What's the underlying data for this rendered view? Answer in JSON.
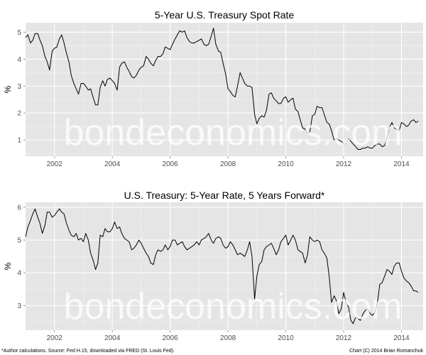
{
  "chart_data": [
    {
      "type": "line",
      "title": "5-Year U.S. Treasury Spot Rate",
      "ylabel": "%",
      "xlim": [
        2001.0,
        2014.75
      ],
      "ylim": [
        0.4,
        5.35
      ],
      "xticks": [
        2002,
        2004,
        2006,
        2008,
        2010,
        2012,
        2014
      ],
      "yticks": [
        1,
        2,
        3,
        4,
        5
      ],
      "grid": true,
      "watermark": "bondeconomics.com",
      "line_color": "#000000",
      "panel_color": "#e5e5e5",
      "series": [
        {
          "x": [
            2001.0,
            2001.08,
            2001.17,
            2001.25,
            2001.33,
            2001.42,
            2001.5,
            2001.58,
            2001.67,
            2001.75,
            2001.83,
            2001.92,
            2002.0,
            2002.08,
            2002.17,
            2002.25,
            2002.33,
            2002.42,
            2002.5,
            2002.58,
            2002.67,
            2002.75,
            2002.83,
            2002.92,
            2003.0,
            2003.08,
            2003.17,
            2003.25,
            2003.33,
            2003.42,
            2003.5,
            2003.58,
            2003.67,
            2003.75,
            2003.83,
            2003.92,
            2004.0,
            2004.08,
            2004.17,
            2004.25,
            2004.33,
            2004.42,
            2004.5,
            2004.58,
            2004.67,
            2004.75,
            2004.83,
            2004.92,
            2005.0,
            2005.08,
            2005.17,
            2005.25,
            2005.33,
            2005.42,
            2005.5,
            2005.58,
            2005.67,
            2005.75,
            2005.83,
            2005.92,
            2006.0,
            2006.08,
            2006.17,
            2006.25,
            2006.33,
            2006.42,
            2006.5,
            2006.58,
            2006.67,
            2006.75,
            2006.83,
            2006.92,
            2007.0,
            2007.08,
            2007.17,
            2007.25,
            2007.33,
            2007.42,
            2007.5,
            2007.58,
            2007.67,
            2007.75,
            2007.83,
            2007.92,
            2008.0,
            2008.08,
            2008.17,
            2008.25,
            2008.33,
            2008.42,
            2008.5,
            2008.58,
            2008.67,
            2008.75,
            2008.83,
            2008.92,
            2009.0,
            2009.08,
            2009.17,
            2009.25,
            2009.33,
            2009.42,
            2009.5,
            2009.58,
            2009.67,
            2009.75,
            2009.83,
            2009.92,
            2010.0,
            2010.08,
            2010.17,
            2010.25,
            2010.33,
            2010.42,
            2010.5,
            2010.58,
            2010.67,
            2010.75,
            2010.83,
            2010.92,
            2011.0,
            2011.08,
            2011.17,
            2011.25,
            2011.33,
            2011.42,
            2011.5,
            2011.58,
            2011.67,
            2011.75,
            2011.83,
            2011.92,
            2012.0,
            2012.08,
            2012.17,
            2012.25,
            2012.33,
            2012.42,
            2012.5,
            2012.58,
            2012.67,
            2012.75,
            2012.83,
            2012.92,
            2013.0,
            2013.08,
            2013.17,
            2013.25,
            2013.33,
            2013.42,
            2013.5,
            2013.58,
            2013.67,
            2013.75,
            2013.83,
            2013.92,
            2014.0,
            2014.08,
            2014.17,
            2014.25,
            2014.33,
            2014.42,
            2014.5,
            2014.58
          ],
          "y": [
            4.8,
            4.9,
            4.6,
            4.7,
            4.95,
            4.95,
            4.7,
            4.5,
            4.1,
            3.9,
            3.6,
            4.3,
            4.4,
            4.45,
            4.75,
            4.9,
            4.6,
            4.2,
            3.9,
            3.4,
            3.1,
            2.9,
            2.7,
            3.1,
            3.1,
            3.0,
            2.85,
            2.9,
            2.6,
            2.3,
            2.3,
            2.95,
            3.2,
            3.0,
            3.25,
            3.3,
            3.2,
            3.1,
            2.85,
            3.7,
            3.85,
            3.9,
            3.7,
            3.55,
            3.35,
            3.3,
            3.4,
            3.6,
            3.7,
            3.75,
            4.1,
            4.0,
            3.85,
            3.75,
            3.95,
            4.1,
            4.1,
            4.2,
            4.45,
            4.4,
            4.35,
            4.55,
            4.75,
            4.9,
            5.05,
            5.0,
            5.05,
            4.8,
            4.65,
            4.6,
            4.6,
            4.65,
            4.7,
            4.75,
            4.55,
            4.5,
            4.55,
            4.85,
            5.15,
            4.55,
            4.3,
            4.25,
            3.85,
            3.45,
            2.9,
            2.8,
            2.65,
            2.6,
            3.0,
            3.5,
            3.3,
            3.1,
            3.0,
            3.0,
            2.95,
            1.95,
            1.6,
            1.8,
            1.9,
            1.85,
            2.1,
            2.7,
            2.75,
            2.55,
            2.45,
            2.35,
            2.35,
            2.55,
            2.6,
            2.4,
            2.5,
            2.55,
            2.15,
            2.05,
            1.75,
            1.45,
            1.4,
            1.25,
            1.3,
            1.9,
            1.95,
            2.25,
            2.2,
            2.2,
            1.95,
            1.65,
            1.6,
            1.35,
            1.0,
            1.05,
            1.0,
            0.95,
            0.85,
            0.85,
            1.05,
            0.95,
            0.85,
            0.75,
            0.65,
            0.65,
            0.7,
            0.7,
            0.75,
            0.7,
            0.7,
            0.8,
            0.85,
            0.85,
            0.75,
            0.8,
            1.1,
            1.45,
            1.65,
            1.45,
            1.4,
            1.35,
            1.65,
            1.6,
            1.5,
            1.55,
            1.7,
            1.75,
            1.65,
            1.7
          ]
        }
      ]
    },
    {
      "type": "line",
      "title": "U.S. Treasury: 5-Year Rate, 5 Years Forward*",
      "ylabel": "%",
      "xlim": [
        2001.0,
        2014.75
      ],
      "ylim": [
        2.25,
        6.15
      ],
      "xticks": [
        2002,
        2004,
        2006,
        2008,
        2010,
        2012,
        2014
      ],
      "yticks": [
        3,
        4,
        5,
        6
      ],
      "grid": true,
      "watermark": "bondeconomics.com",
      "line_color": "#000000",
      "panel_color": "#e5e5e5",
      "series": [
        {
          "x": [
            2001.0,
            2001.08,
            2001.17,
            2001.25,
            2001.33,
            2001.42,
            2001.5,
            2001.58,
            2001.67,
            2001.75,
            2001.83,
            2001.92,
            2002.0,
            2002.08,
            2002.17,
            2002.25,
            2002.33,
            2002.42,
            2002.5,
            2002.58,
            2002.67,
            2002.75,
            2002.83,
            2002.92,
            2003.0,
            2003.08,
            2003.17,
            2003.25,
            2003.33,
            2003.42,
            2003.5,
            2003.58,
            2003.67,
            2003.75,
            2003.83,
            2003.92,
            2004.0,
            2004.08,
            2004.17,
            2004.25,
            2004.33,
            2004.42,
            2004.5,
            2004.58,
            2004.67,
            2004.75,
            2004.83,
            2004.92,
            2005.0,
            2005.08,
            2005.17,
            2005.25,
            2005.33,
            2005.42,
            2005.5,
            2005.58,
            2005.67,
            2005.75,
            2005.83,
            2005.92,
            2006.0,
            2006.08,
            2006.17,
            2006.25,
            2006.33,
            2006.42,
            2006.5,
            2006.58,
            2006.67,
            2006.75,
            2006.83,
            2006.92,
            2007.0,
            2007.08,
            2007.17,
            2007.25,
            2007.33,
            2007.42,
            2007.5,
            2007.58,
            2007.67,
            2007.75,
            2007.83,
            2007.92,
            2008.0,
            2008.08,
            2008.17,
            2008.25,
            2008.33,
            2008.42,
            2008.5,
            2008.58,
            2008.67,
            2008.75,
            2008.83,
            2008.92,
            2009.0,
            2009.08,
            2009.17,
            2009.25,
            2009.33,
            2009.42,
            2009.5,
            2009.58,
            2009.67,
            2009.75,
            2009.83,
            2009.92,
            2010.0,
            2010.08,
            2010.17,
            2010.25,
            2010.33,
            2010.42,
            2010.5,
            2010.58,
            2010.67,
            2010.75,
            2010.83,
            2010.92,
            2011.0,
            2011.08,
            2011.17,
            2011.25,
            2011.33,
            2011.42,
            2011.5,
            2011.58,
            2011.67,
            2011.75,
            2011.83,
            2011.92,
            2012.0,
            2012.08,
            2012.17,
            2012.25,
            2012.33,
            2012.42,
            2012.5,
            2012.58,
            2012.67,
            2012.75,
            2012.83,
            2012.92,
            2013.0,
            2013.08,
            2013.17,
            2013.25,
            2013.33,
            2013.42,
            2013.5,
            2013.58,
            2013.67,
            2013.75,
            2013.83,
            2013.92,
            2014.0,
            2014.08,
            2014.17,
            2014.25,
            2014.33,
            2014.42,
            2014.5,
            2014.58
          ],
          "y": [
            5.1,
            5.4,
            5.6,
            5.8,
            5.95,
            5.7,
            5.5,
            5.2,
            5.45,
            5.85,
            5.85,
            5.7,
            5.75,
            5.85,
            5.95,
            5.85,
            5.8,
            5.5,
            5.3,
            5.15,
            5.1,
            5.2,
            5.0,
            5.05,
            4.95,
            5.2,
            5.0,
            4.6,
            4.4,
            4.1,
            4.3,
            5.15,
            5.1,
            5.35,
            5.25,
            5.25,
            5.35,
            5.55,
            5.35,
            5.4,
            5.2,
            5.05,
            5.0,
            4.95,
            4.7,
            4.75,
            4.85,
            5.0,
            4.9,
            4.75,
            4.6,
            4.5,
            4.3,
            4.25,
            4.55,
            4.7,
            4.65,
            4.7,
            4.85,
            4.7,
            4.8,
            5.0,
            5.0,
            4.85,
            4.9,
            4.95,
            4.8,
            4.7,
            4.75,
            4.8,
            4.85,
            4.95,
            4.85,
            5.0,
            5.05,
            5.1,
            5.2,
            5.0,
            4.9,
            5.05,
            5.1,
            5.05,
            4.85,
            4.75,
            4.8,
            4.95,
            4.85,
            4.7,
            4.55,
            4.6,
            4.55,
            4.5,
            4.7,
            4.95,
            4.5,
            3.2,
            3.9,
            4.25,
            4.35,
            4.7,
            4.8,
            4.85,
            4.9,
            4.75,
            4.55,
            4.7,
            4.95,
            5.05,
            5.15,
            4.85,
            5.0,
            5.15,
            5.0,
            4.7,
            4.65,
            4.6,
            4.3,
            4.55,
            5.1,
            5.0,
            4.95,
            5.0,
            4.95,
            4.7,
            4.6,
            4.45,
            3.9,
            3.1,
            3.3,
            3.15,
            2.75,
            2.9,
            3.4,
            3.1,
            2.95,
            2.55,
            2.45,
            2.65,
            2.6,
            2.55,
            2.75,
            2.85,
            2.9,
            2.75,
            2.7,
            2.8,
            3.1,
            3.65,
            3.7,
            3.9,
            4.1,
            4.05,
            3.95,
            4.2,
            4.3,
            4.3,
            4.05,
            3.85,
            3.75,
            3.7,
            3.6,
            3.45,
            3.45,
            3.4
          ]
        }
      ]
    }
  ],
  "footer": {
    "left": "*Author calculations. Source: Fed H.15, downloaded via FRED (St. Louis Fed).",
    "right": "Chart (C) 2014 Brian Romanchuk"
  }
}
